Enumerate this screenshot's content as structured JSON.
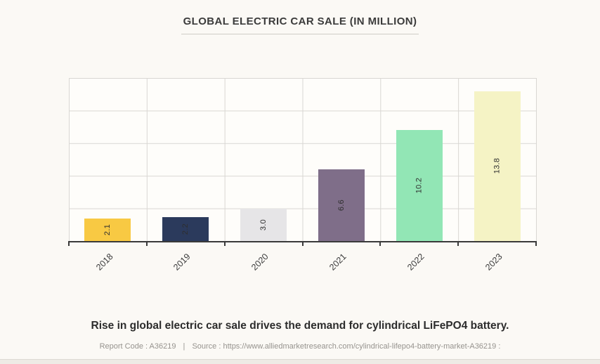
{
  "title": "GLOBAL ELECTRIC CAR SALE (IN MILLION)",
  "caption": "Rise in global electric car sale drives the demand for cylindrical LiFePO4 battery.",
  "footer": {
    "report_code": "Report Code : A36219",
    "separator": "|",
    "source": "Source : https://www.alliedmarketresearch.com/cylindrical-lifepo4-battery-market-A36219 :"
  },
  "chart_data": {
    "type": "bar",
    "title": "GLOBAL ELECTRIC CAR SALE (IN MILLION)",
    "categories": [
      "2018",
      "2019",
      "2020",
      "2021",
      "2022",
      "2023"
    ],
    "values": [
      2.1,
      2.2,
      3.0,
      6.6,
      10.2,
      13.8
    ],
    "value_labels": [
      "2.1",
      "2.2",
      "3.0",
      "6.6",
      "10.2",
      "13.8"
    ],
    "bar_colors": [
      "#F8C943",
      "#2B3A5C",
      "#E6E5E7",
      "#7F6E89",
      "#92E6B5",
      "#F5F3C5"
    ],
    "xlabel": "",
    "ylabel": "",
    "ylim": [
      0,
      15
    ],
    "gridline_step": 3,
    "grid": true,
    "grid_color": "#d9d7d3",
    "axis_color": "#3a3a3a",
    "legend_position": "none",
    "x_tick_rotation_deg": -45,
    "bar_label_rotation_deg": -90,
    "y_tick_labels_shown": false
  }
}
